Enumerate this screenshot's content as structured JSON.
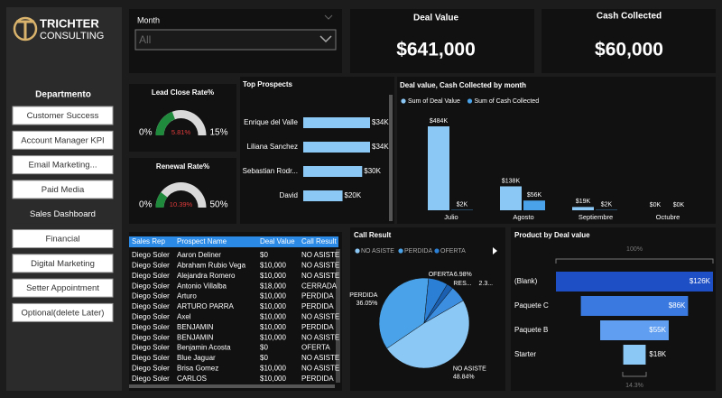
{
  "logo": {
    "name": "TRICHTER",
    "sub": "CONSULTING"
  },
  "sidebar": {
    "title": "Departmento",
    "buttons": [
      "Customer Success",
      "Account Manager KPI",
      "Email Marketing...",
      "Paid Media",
      "Sales Dashboard",
      "Financial",
      "Digital Marketing",
      "Setter Appointment",
      "Optional(delete Later)"
    ]
  },
  "filter": {
    "label": "Month",
    "value": "All"
  },
  "cards": [
    {
      "title": "Deal Value",
      "value": "$641,000"
    },
    {
      "title": "Cash Collected",
      "value": "$60,000"
    }
  ],
  "table": {
    "columns": [
      "Sales Rep",
      "Prospect Name",
      "Deal Value",
      "Call Result"
    ],
    "rows": [
      [
        "Diego Soler",
        "Aaron Deliner",
        "$0",
        "NO ASISTE"
      ],
      [
        "Diego Soler",
        "Abraham Rubio Vega",
        "$10,000",
        "NO ASISTE"
      ],
      [
        "Diego Soler",
        "Alejandra Romero",
        "$10,000",
        "NO ASISTE"
      ],
      [
        "Diego Soler",
        "Antonio Villalba",
        "$18,000",
        "CERRADA"
      ],
      [
        "Diego Soler",
        "Arturo",
        "$10,000",
        "PERDIDA"
      ],
      [
        "Diego Soler",
        "ARTURO PARRA",
        "$10,000",
        "PERDIDA"
      ],
      [
        "Diego Soler",
        "Axel",
        "$10,000",
        "NO ASISTE"
      ],
      [
        "Diego Soler",
        "BENJAMIN",
        "$10,000",
        "PERDIDA"
      ],
      [
        "Diego Soler",
        "BENJAMIN",
        "$10,000",
        "NO ASISTE"
      ],
      [
        "Diego Soler",
        "Benjamin Acosta",
        "$0",
        "OFERTA"
      ],
      [
        "Diego Soler",
        "Blue Jaguar",
        "$0",
        "NO ASISTE"
      ],
      [
        "Diego Soler",
        "Brisa Gomez",
        "$10,000",
        "NO ASISTE"
      ],
      [
        "Diego Soler",
        "CARLOS",
        "$10,000",
        "PERDIDA"
      ]
    ]
  },
  "chart_data": [
    {
      "type": "gauge",
      "title": "Lead Close Rate%",
      "value": 5.81,
      "value_label": "5.81%",
      "ylim": [
        0,
        15
      ],
      "yticks": [
        {
          "value": 0,
          "label": "0%"
        },
        {
          "value": 15,
          "label": "15%"
        }
      ],
      "color": "#1f8a3c"
    },
    {
      "type": "gauge",
      "title": "Renewal Rate%",
      "value": 10.39,
      "value_label": "10.39%",
      "ylim": [
        0,
        50
      ],
      "yticks": [
        {
          "value": 0,
          "label": "0%"
        },
        {
          "value": 50,
          "label": "50%"
        }
      ],
      "color": "#1f8a3c"
    },
    {
      "type": "hbar",
      "title": "Top Prospects",
      "categories": [
        "Enrique del Valle",
        "Liliana Sanchez",
        "Sebastian Rodr...",
        "David"
      ],
      "values": [
        34000,
        34000,
        30000,
        20000
      ],
      "value_labels": [
        "$34K",
        "$34K",
        "$30K",
        "$20K"
      ],
      "color": "#8cc8f5"
    },
    {
      "type": "column",
      "title": "Deal value, Cash Collected by month",
      "categories": [
        "Julio",
        "Agosto",
        "Septiembre",
        "Octubre"
      ],
      "series": [
        {
          "name": "Sum of Deal Value",
          "color": "#8cc8f5",
          "values": [
            484000,
            138000,
            19000,
            0
          ],
          "value_labels": [
            "$484K",
            "$138K",
            "$19K",
            "$0K"
          ]
        },
        {
          "name": "Sum of Cash Collected",
          "color": "#4aa3e8",
          "values": [
            2000,
            56000,
            2000,
            0
          ],
          "value_labels": [
            "$2K",
            "$56K",
            "$2K",
            "$0K"
          ]
        }
      ]
    },
    {
      "type": "pie",
      "title": "Call Result",
      "categories": [
        "NO ASISTE",
        "PERDIDA",
        "OFERTA",
        "RES...",
        null
      ],
      "values": [
        48.84,
        36.05,
        6.98,
        2.33,
        5.8
      ],
      "value_labels": [
        "48.84%",
        "36.05%",
        "6.98%",
        "2.3...",
        null
      ],
      "colors": [
        "#8cc8f5",
        "#4aa3e8",
        "#2b7fd4",
        "#1a5fb0",
        "#3c8ee0"
      ]
    },
    {
      "type": "funnel",
      "title": "Product by Deal value",
      "categories": [
        "(Blank)",
        "Paquete C",
        "Paquete B",
        "Starter"
      ],
      "values": [
        126000,
        86000,
        55000,
        18000
      ],
      "value_labels": [
        "$126K",
        "$86K",
        "$55K",
        "$18K"
      ],
      "colors": [
        "#1f4fc4",
        "#3a7ae0",
        "#5f9ef0",
        "#8cc8f5"
      ],
      "top_label": "100%",
      "bottom_label": "14.3%"
    }
  ]
}
